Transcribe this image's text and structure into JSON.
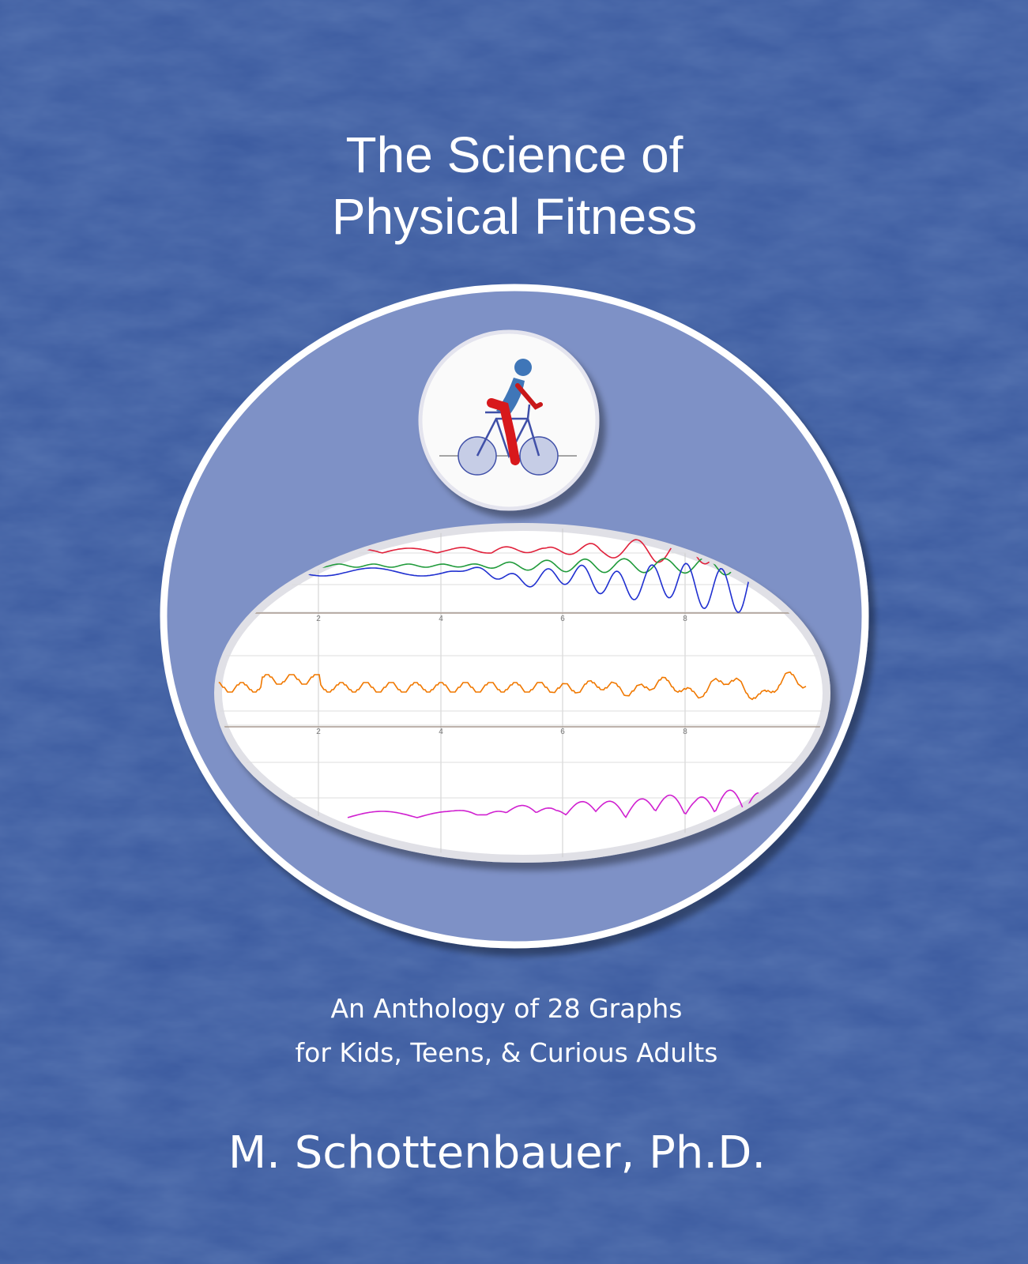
{
  "cover": {
    "title": [
      "The Science of",
      "Physical Fitness"
    ],
    "subtitle": [
      "An Anthology of 28 Graphs",
      "for Kids, Teens, & Curious Adults"
    ],
    "author": "M. Schottenbauer, Ph.D.",
    "graph_axis_labels": [
      [
        "2",
        "4",
        "6",
        "8"
      ],
      [
        "2",
        "4",
        "6",
        "8"
      ]
    ]
  }
}
